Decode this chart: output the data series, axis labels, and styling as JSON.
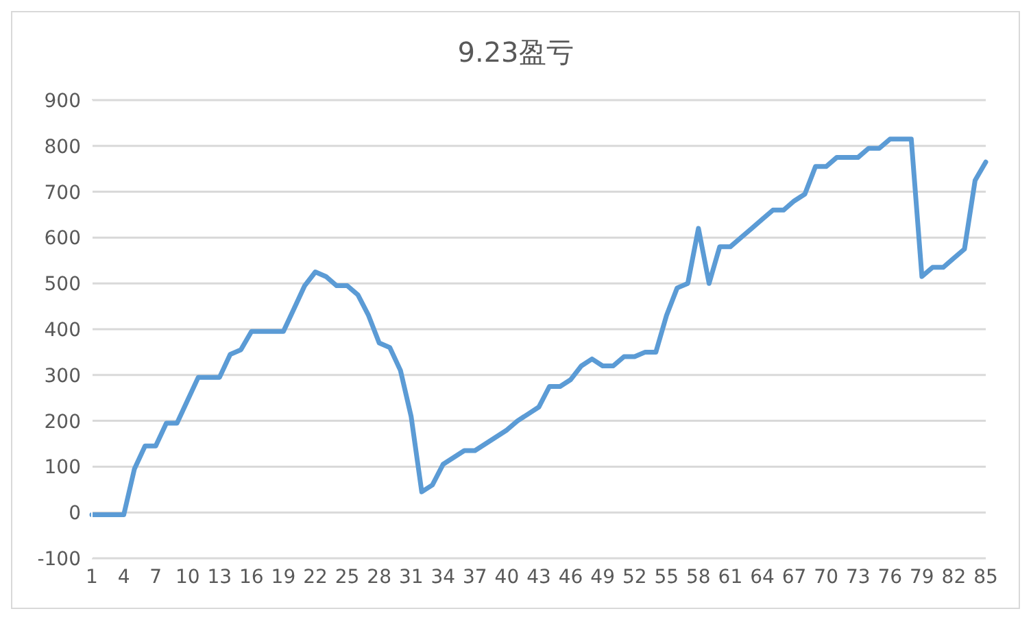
{
  "chart_data": {
    "type": "line",
    "title": "9.23盈亏",
    "categories": [
      "1",
      null,
      null,
      "4",
      null,
      null,
      "7",
      null,
      null,
      "10",
      null,
      null,
      "13",
      null,
      null,
      "16",
      null,
      null,
      "19",
      null,
      null,
      "22",
      null,
      null,
      "25",
      null,
      null,
      "28",
      null,
      null,
      "31",
      null,
      null,
      "34",
      null,
      null,
      "37",
      null,
      null,
      "40",
      null,
      null,
      "43",
      null,
      null,
      "46",
      null,
      null,
      "49",
      null,
      null,
      "52",
      null,
      null,
      "55",
      null,
      null,
      "58",
      null,
      null,
      "61",
      null,
      null,
      "64",
      null,
      null,
      "67",
      null,
      null,
      "70",
      null,
      null,
      "73",
      null,
      null,
      "76",
      null,
      null,
      "79",
      null,
      null,
      "82",
      null,
      null,
      "85"
    ],
    "series": [
      {
        "color": "#5b9bd5",
        "values": [
          -5,
          -5,
          -5,
          -5,
          95,
          145,
          145,
          195,
          195,
          245,
          295,
          295,
          295,
          345,
          355,
          395,
          395,
          395,
          395,
          445,
          495,
          525,
          515,
          495,
          495,
          475,
          430,
          370,
          360,
          310,
          210,
          45,
          60,
          105,
          120,
          135,
          135,
          150,
          165,
          180,
          200,
          215,
          230,
          275,
          275,
          290,
          320,
          335,
          320,
          320,
          340,
          340,
          350,
          350,
          430,
          490,
          500,
          620,
          500,
          580,
          580,
          600,
          620,
          640,
          660,
          660,
          680,
          695,
          755,
          755,
          775,
          775,
          775,
          795,
          795,
          815,
          815,
          815,
          515,
          535,
          535,
          555,
          575,
          725,
          765
        ]
      }
    ],
    "ylim": [
      -100,
      900
    ],
    "yticks": [
      -100,
      0,
      100,
      200,
      300,
      400,
      500,
      600,
      700,
      800,
      900
    ],
    "grid": "y",
    "legend": false,
    "marker": "none",
    "line_style": "solid"
  }
}
